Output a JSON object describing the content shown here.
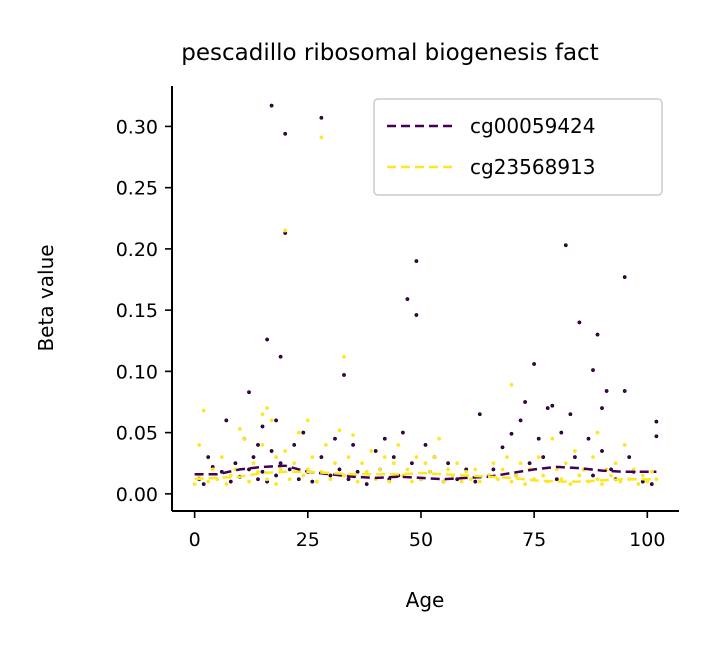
{
  "chart_data": {
    "type": "scatter",
    "title": "pescadillo ribosomal biogenesis fact",
    "xlabel": "Age",
    "ylabel": "Beta value",
    "xlim": [
      -5,
      107
    ],
    "ylim": [
      -0.014,
      0.333
    ],
    "x_ticks": [
      0,
      25,
      50,
      75,
      100
    ],
    "x_tick_labels": [
      "0",
      "25",
      "50",
      "75",
      "100"
    ],
    "y_ticks": [
      0.0,
      0.05,
      0.1,
      0.15,
      0.2,
      0.25,
      0.3
    ],
    "y_tick_labels": [
      "0.00",
      "0.05",
      "0.10",
      "0.15",
      "0.20",
      "0.25",
      "0.30"
    ],
    "grid": false,
    "legend_position": "top-right",
    "series": [
      {
        "name": "cg00059424",
        "color": "#440154",
        "points": [
          [
            1,
            0.012
          ],
          [
            2,
            0.008
          ],
          [
            3,
            0.03
          ],
          [
            4,
            0.022
          ],
          [
            6,
            0.018
          ],
          [
            7,
            0.06
          ],
          [
            8,
            0.01
          ],
          [
            9,
            0.025
          ],
          [
            10,
            0.014
          ],
          [
            11,
            0.045
          ],
          [
            12,
            0.083
          ],
          [
            12,
            0.02
          ],
          [
            13,
            0.03
          ],
          [
            14,
            0.012
          ],
          [
            14,
            0.04
          ],
          [
            15,
            0.018
          ],
          [
            15,
            0.055
          ],
          [
            16,
            0.126
          ],
          [
            16,
            0.01
          ],
          [
            17,
            0.317
          ],
          [
            17,
            0.035
          ],
          [
            18,
            0.06
          ],
          [
            18,
            0.015
          ],
          [
            19,
            0.112
          ],
          [
            19,
            0.025
          ],
          [
            20,
            0.294
          ],
          [
            20,
            0.213
          ],
          [
            21,
            0.02
          ],
          [
            22,
            0.04
          ],
          [
            23,
            0.012
          ],
          [
            24,
            0.05
          ],
          [
            25,
            0.018
          ],
          [
            26,
            0.01
          ],
          [
            28,
            0.307
          ],
          [
            28,
            0.03
          ],
          [
            30,
            0.015
          ],
          [
            31,
            0.045
          ],
          [
            32,
            0.02
          ],
          [
            33,
            0.097
          ],
          [
            34,
            0.012
          ],
          [
            35,
            0.04
          ],
          [
            36,
            0.018
          ],
          [
            38,
            0.008
          ],
          [
            40,
            0.035
          ],
          [
            41,
            0.02
          ],
          [
            42,
            0.045
          ],
          [
            43,
            0.012
          ],
          [
            44,
            0.03
          ],
          [
            45,
            0.015
          ],
          [
            46,
            0.05
          ],
          [
            47,
            0.159
          ],
          [
            47,
            0.272
          ],
          [
            48,
            0.025
          ],
          [
            49,
            0.146
          ],
          [
            49,
            0.19
          ],
          [
            50,
            0.012
          ],
          [
            51,
            0.04
          ],
          [
            52,
            0.018
          ],
          [
            53,
            0.03
          ],
          [
            55,
            0.01
          ],
          [
            56,
            0.025
          ],
          [
            58,
            0.012
          ],
          [
            60,
            0.02
          ],
          [
            62,
            0.01
          ],
          [
            63,
            0.065
          ],
          [
            65,
            0.015
          ],
          [
            66,
            0.02
          ],
          [
            68,
            0.038
          ],
          [
            70,
            0.049
          ],
          [
            71,
            0.015
          ],
          [
            72,
            0.06
          ],
          [
            73,
            0.075
          ],
          [
            74,
            0.025
          ],
          [
            75,
            0.106
          ],
          [
            76,
            0.045
          ],
          [
            77,
            0.03
          ],
          [
            78,
            0.07
          ],
          [
            79,
            0.072
          ],
          [
            80,
            0.012
          ],
          [
            81,
            0.285
          ],
          [
            81,
            0.05
          ],
          [
            82,
            0.203
          ],
          [
            83,
            0.065
          ],
          [
            84,
            0.03
          ],
          [
            85,
            0.14
          ],
          [
            86,
            0.02
          ],
          [
            87,
            0.045
          ],
          [
            88,
            0.101
          ],
          [
            88,
            0.015
          ],
          [
            89,
            0.13
          ],
          [
            90,
            0.07
          ],
          [
            90,
            0.035
          ],
          [
            91,
            0.084
          ],
          [
            92,
            0.02
          ],
          [
            93,
            0.012
          ],
          [
            95,
            0.177
          ],
          [
            95,
            0.084
          ],
          [
            96,
            0.03
          ],
          [
            97,
            0.018
          ],
          [
            99,
            0.01
          ],
          [
            101,
            0.008
          ],
          [
            102,
            0.059
          ],
          [
            102,
            0.047
          ]
        ]
      },
      {
        "name": "cg23568913",
        "color": "#fde725",
        "points": [
          [
            0,
            0.008
          ],
          [
            1,
            0.04
          ],
          [
            1,
            0.015
          ],
          [
            2,
            0.068
          ],
          [
            3,
            0.01
          ],
          [
            4,
            0.02
          ],
          [
            5,
            0.012
          ],
          [
            6,
            0.03
          ],
          [
            7,
            0.008
          ],
          [
            8,
            0.015
          ],
          [
            9,
            0.02
          ],
          [
            10,
            0.053
          ],
          [
            11,
            0.045
          ],
          [
            12,
            0.01
          ],
          [
            13,
            0.025
          ],
          [
            14,
            0.018
          ],
          [
            15,
            0.065
          ],
          [
            15,
            0.04
          ],
          [
            16,
            0.07
          ],
          [
            16,
            0.012
          ],
          [
            17,
            0.06
          ],
          [
            18,
            0.03
          ],
          [
            18,
            0.008
          ],
          [
            19,
            0.02
          ],
          [
            20,
            0.215
          ],
          [
            20,
            0.035
          ],
          [
            21,
            0.012
          ],
          [
            22,
            0.025
          ],
          [
            23,
            0.05
          ],
          [
            24,
            0.015
          ],
          [
            25,
            0.06
          ],
          [
            25,
            0.02
          ],
          [
            26,
            0.03
          ],
          [
            27,
            0.01
          ],
          [
            28,
            0.291
          ],
          [
            28,
            0.018
          ],
          [
            29,
            0.04
          ],
          [
            30,
            0.012
          ],
          [
            31,
            0.025
          ],
          [
            32,
            0.052
          ],
          [
            33,
            0.112
          ],
          [
            33,
            0.015
          ],
          [
            34,
            0.03
          ],
          [
            35,
            0.048
          ],
          [
            36,
            0.01
          ],
          [
            37,
            0.025
          ],
          [
            38,
            0.018
          ],
          [
            39,
            0.035
          ],
          [
            40,
            0.012
          ],
          [
            41,
            0.02
          ],
          [
            42,
            0.03
          ],
          [
            43,
            0.01
          ],
          [
            44,
            0.025
          ],
          [
            45,
            0.04
          ],
          [
            46,
            0.015
          ],
          [
            47,
            0.02
          ],
          [
            48,
            0.01
          ],
          [
            49,
            0.03
          ],
          [
            50,
            0.012
          ],
          [
            51,
            0.025
          ],
          [
            52,
            0.018
          ],
          [
            53,
            0.03
          ],
          [
            54,
            0.045
          ],
          [
            55,
            0.01
          ],
          [
            56,
            0.02
          ],
          [
            57,
            0.015
          ],
          [
            58,
            0.025
          ],
          [
            59,
            0.01
          ],
          [
            60,
            0.018
          ],
          [
            61,
            0.012
          ],
          [
            62,
            0.02
          ],
          [
            63,
            0.01
          ],
          [
            65,
            0.015
          ],
          [
            66,
            0.025
          ],
          [
            67,
            0.012
          ],
          [
            68,
            0.02
          ],
          [
            69,
            0.03
          ],
          [
            70,
            0.089
          ],
          [
            70,
            0.01
          ],
          [
            71,
            0.015
          ],
          [
            72,
            0.025
          ],
          [
            73,
            0.008
          ],
          [
            74,
            0.02
          ],
          [
            75,
            0.012
          ],
          [
            76,
            0.03
          ],
          [
            77,
            0.015
          ],
          [
            78,
            0.01
          ],
          [
            79,
            0.045
          ],
          [
            80,
            0.02
          ],
          [
            81,
            0.012
          ],
          [
            82,
            0.025
          ],
          [
            83,
            0.008
          ],
          [
            84,
            0.035
          ],
          [
            85,
            0.015
          ],
          [
            86,
            0.02
          ],
          [
            87,
            0.01
          ],
          [
            88,
            0.03
          ],
          [
            89,
            0.05
          ],
          [
            89,
            0.012
          ],
          [
            90,
            0.008
          ],
          [
            91,
            0.02
          ],
          [
            92,
            0.015
          ],
          [
            93,
            0.025
          ],
          [
            94,
            0.01
          ],
          [
            95,
            0.04
          ],
          [
            96,
            0.012
          ],
          [
            97,
            0.02
          ],
          [
            98,
            0.008
          ],
          [
            99,
            0.015
          ],
          [
            100,
            0.01
          ],
          [
            101,
            0.018
          ],
          [
            102,
            0.012
          ]
        ]
      }
    ],
    "trend_lines": [
      {
        "series": "cg00059424",
        "style": "dashed",
        "points": [
          [
            0,
            0.016
          ],
          [
            5,
            0.016
          ],
          [
            10,
            0.02
          ],
          [
            15,
            0.022
          ],
          [
            20,
            0.023
          ],
          [
            25,
            0.018
          ],
          [
            30,
            0.016
          ],
          [
            35,
            0.014
          ],
          [
            40,
            0.013
          ],
          [
            45,
            0.014
          ],
          [
            50,
            0.013
          ],
          [
            55,
            0.012
          ],
          [
            60,
            0.013
          ],
          [
            65,
            0.014
          ],
          [
            70,
            0.017
          ],
          [
            75,
            0.02
          ],
          [
            80,
            0.022
          ],
          [
            85,
            0.021
          ],
          [
            90,
            0.019
          ],
          [
            95,
            0.018
          ],
          [
            100,
            0.018
          ],
          [
            102,
            0.018
          ]
        ]
      },
      {
        "series": "cg23568913",
        "style": "dashed",
        "points": [
          [
            0,
            0.012
          ],
          [
            5,
            0.013
          ],
          [
            10,
            0.014
          ],
          [
            15,
            0.017
          ],
          [
            20,
            0.018
          ],
          [
            25,
            0.018
          ],
          [
            30,
            0.017
          ],
          [
            35,
            0.016
          ],
          [
            40,
            0.016
          ],
          [
            45,
            0.016
          ],
          [
            50,
            0.017
          ],
          [
            55,
            0.016
          ],
          [
            60,
            0.015
          ],
          [
            65,
            0.014
          ],
          [
            70,
            0.013
          ],
          [
            75,
            0.011
          ],
          [
            80,
            0.01
          ],
          [
            85,
            0.01
          ],
          [
            90,
            0.011
          ],
          [
            95,
            0.012
          ],
          [
            100,
            0.012
          ],
          [
            102,
            0.012
          ]
        ]
      }
    ]
  }
}
